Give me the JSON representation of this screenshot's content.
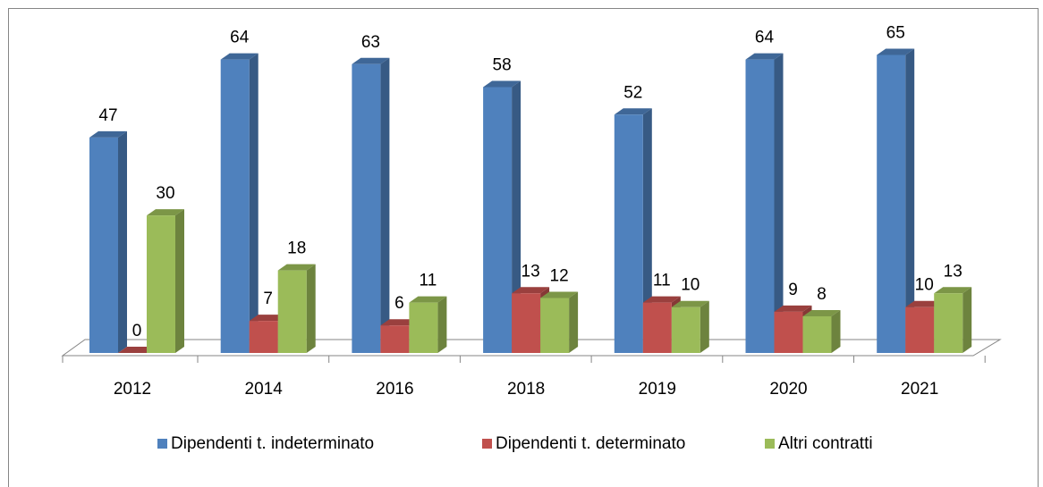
{
  "chart_data": {
    "type": "bar3d",
    "categories": [
      "2012",
      "2014",
      "2016",
      "2018",
      "2019",
      "2020",
      "2021"
    ],
    "series": [
      {
        "name": "Dipendenti t. indeterminato",
        "color": "#4f81bd",
        "values": [
          47,
          64,
          63,
          58,
          52,
          64,
          65
        ]
      },
      {
        "name": "Dipendenti t. determinato",
        "color": "#c0504d",
        "values": [
          0,
          7,
          6,
          13,
          11,
          9,
          10
        ]
      },
      {
        "name": "Altri contratti",
        "color": "#9bbb59",
        "values": [
          30,
          18,
          11,
          12,
          10,
          8,
          13
        ]
      }
    ],
    "legend": "bottom"
  }
}
